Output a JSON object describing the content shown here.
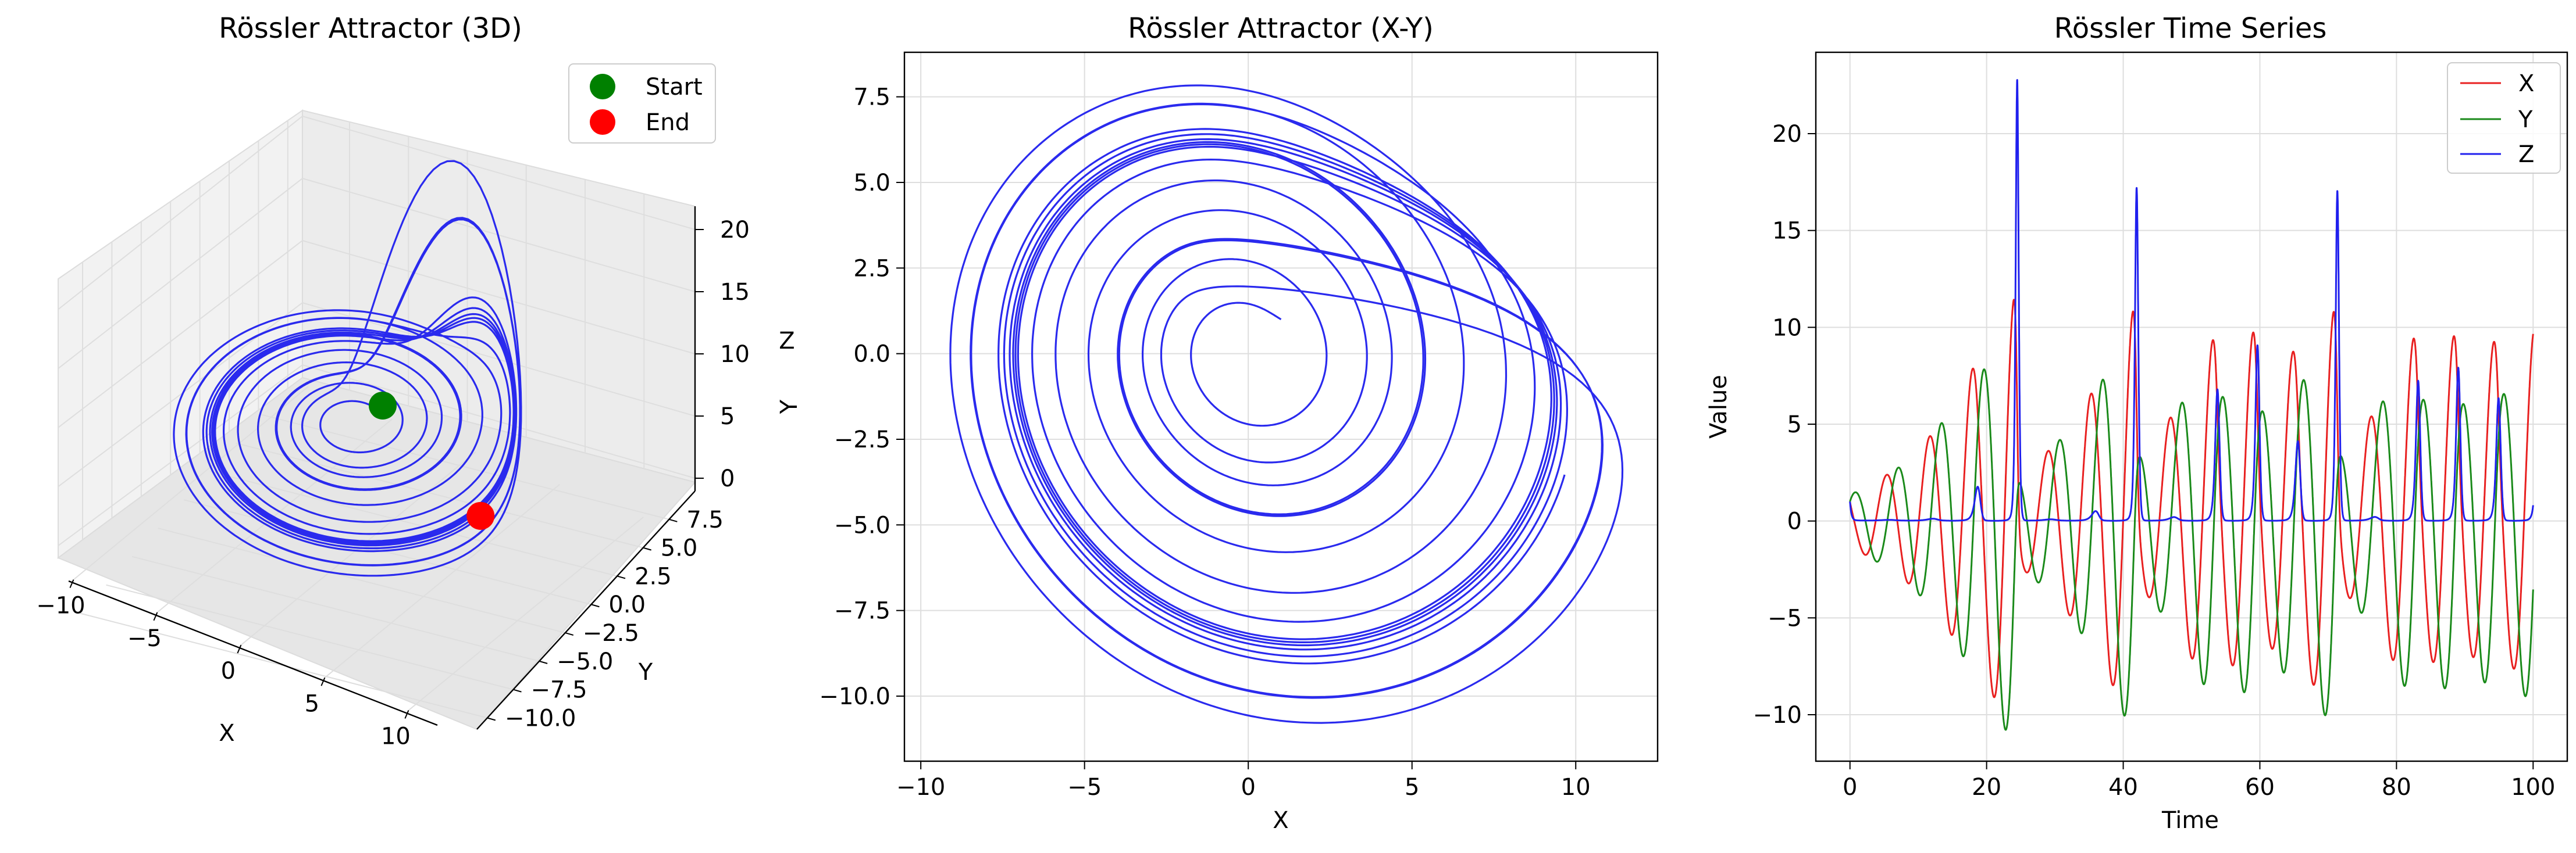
{
  "chart_data": [
    {
      "type": "line3d",
      "title": "Rössler Attractor (3D)",
      "xlabel": "X",
      "ylabel": "Y",
      "zlabel": "Z",
      "xticks": [
        -10,
        -5,
        0,
        5,
        10
      ],
      "yticks": [
        "7.5",
        "5.0",
        "2.5",
        "0.0",
        "−2.5",
        "−5.0",
        "−7.5",
        "−10.0"
      ],
      "zticks": [
        0,
        5,
        10,
        15,
        20
      ],
      "xticks_label": [
        "−10",
        "−5",
        "0",
        "5",
        "10"
      ],
      "zticks_label": [
        "0",
        "5",
        "10",
        "15",
        "20"
      ],
      "legend": [
        {
          "label": "Start",
          "color": "#008000"
        },
        {
          "label": "End",
          "color": "#ff0000"
        }
      ],
      "line_color": "#2a2aee",
      "start_point": {
        "x": 1.0,
        "y": 1.0,
        "z": 1.0
      },
      "end_point": {
        "x": 9.6,
        "y": -3.6,
        "z": 0.9
      },
      "legend_position": "upper right"
    },
    {
      "type": "line",
      "title": "Rössler Attractor (X-Y)",
      "xlabel": "X",
      "ylabel": "Y",
      "xlim": [
        -10.5,
        12.5
      ],
      "ylim": [
        -11.9,
        8.8
      ],
      "xticks": [
        -10,
        -5,
        0,
        5,
        10
      ],
      "xticks_label": [
        "−10",
        "−5",
        "0",
        "5",
        "10"
      ],
      "yticks": [
        -10,
        -7.5,
        -5,
        -2.5,
        0,
        2.5,
        5,
        7.5
      ],
      "yticks_label": [
        "−10.0",
        "−7.5",
        "−5.0",
        "−2.5",
        "0.0",
        "2.5",
        "5.0",
        "7.5"
      ],
      "grid": true,
      "line_color": "#2a2aee",
      "spiral_envelope": [
        {
          "t": 0,
          "cx": 0.0,
          "cy": 0.0,
          "r": 1.4
        },
        {
          "t": 30,
          "cx": 0.3,
          "cy": -0.7,
          "r": 4.0
        },
        {
          "t": 60,
          "cx": 0.8,
          "cy": -1.2,
          "r": 7.3
        },
        {
          "t": 100,
          "cx": 1.2,
          "cy": -1.5,
          "r": 9.2
        }
      ]
    },
    {
      "type": "line",
      "title": "Rössler Time Series",
      "xlabel": "Time",
      "ylabel": "Value",
      "xlim": [
        -5,
        105
      ],
      "ylim": [
        -12.4,
        24.2
      ],
      "xticks": [
        0,
        20,
        40,
        60,
        80,
        100
      ],
      "xticks_label": [
        "0",
        "20",
        "40",
        "60",
        "80",
        "100"
      ],
      "yticks": [
        -10,
        -5,
        0,
        5,
        10,
        15,
        20
      ],
      "yticks_label": [
        "−10",
        "−5",
        "0",
        "5",
        "10",
        "15",
        "20"
      ],
      "grid": true,
      "legend_position": "upper right",
      "series": [
        {
          "name": "X",
          "color": "#e82020"
        },
        {
          "name": "Y",
          "color": "#1a8a1a"
        },
        {
          "name": "Z",
          "color": "#2020ee"
        }
      ],
      "x_peaks": [
        {
          "t": 24.3,
          "v": 11.4
        },
        {
          "t": 41.3,
          "v": 10.8
        },
        {
          "t": 53.5,
          "v": 9.3
        },
        {
          "t": 59.4,
          "v": 9.7
        },
        {
          "t": 70.7,
          "v": 10.8
        },
        {
          "t": 82.4,
          "v": 9.4
        },
        {
          "t": 88.1,
          "v": 9.5
        },
        {
          "t": 100,
          "v": 9.6
        }
      ],
      "z_spikes": [
        {
          "t": 18.5,
          "v": 1.8
        },
        {
          "t": 24.2,
          "v": 22.8
        },
        {
          "t": 42.0,
          "v": 17.2
        },
        {
          "t": 54.3,
          "v": 6.7
        },
        {
          "t": 60.0,
          "v": 9.1
        },
        {
          "t": 65.7,
          "v": 4.1
        },
        {
          "t": 71.2,
          "v": 17.0
        },
        {
          "t": 83.0,
          "v": 7.0
        },
        {
          "t": 88.8,
          "v": 8.0
        },
        {
          "t": 94.5,
          "v": 6.5
        }
      ]
    }
  ]
}
